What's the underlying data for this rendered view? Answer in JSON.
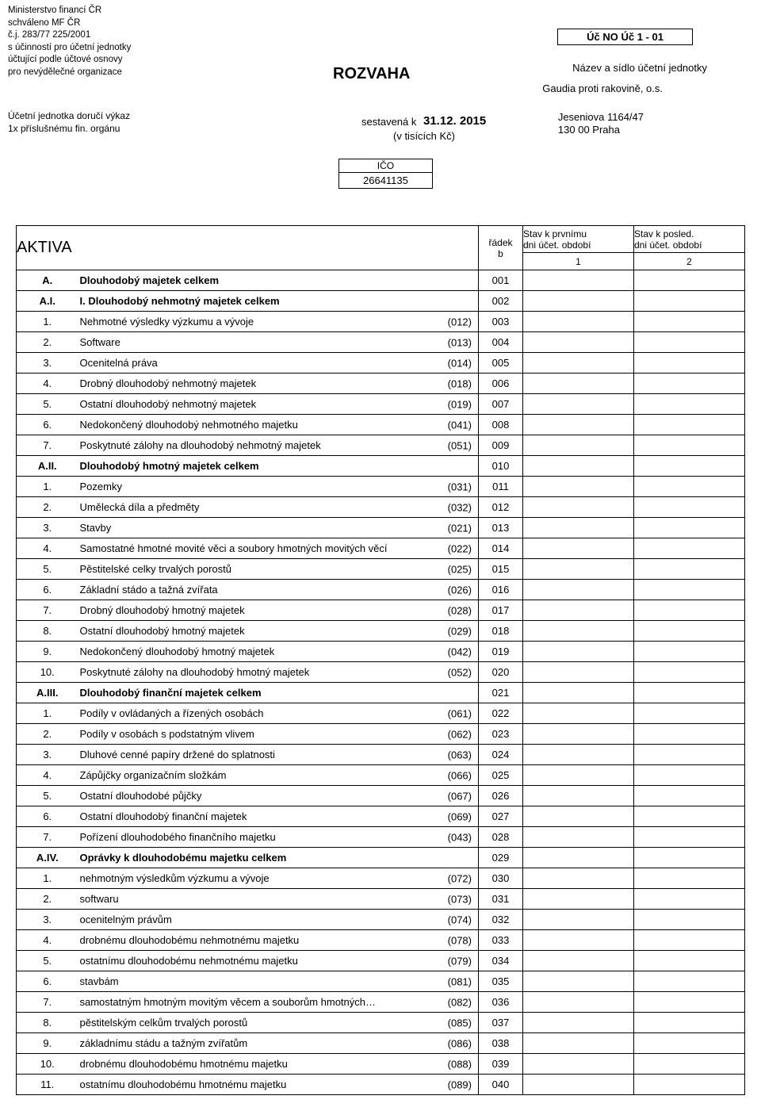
{
  "header": {
    "ministry_lines": [
      "Ministerstvo financí ČR",
      "schváleno MF ČR",
      "č.j. 283/77 225/2001",
      "s účinností pro účetní jednotky",
      "účtující podle účtové osnovy",
      "pro nevýdělečné organizace"
    ],
    "form_code": "Úč NO Úč 1 - 01",
    "entity_label": "Název a sídlo účetní jednotky",
    "entity_name": "Gaudia proti rakovině, o.s.",
    "address_line1": "Jeseniova 1164/47",
    "address_line2": "130 00  Praha",
    "title": "ROZVAHA",
    "compiled_label": "sestavená k",
    "compiled_date": "31.12. 2015",
    "currency_note": "(v tisících Kč)",
    "deliver_lines": [
      "Účetní jednotka doručí výkaz",
      "1x příslušnému fin. orgánu"
    ],
    "ico_label": "IČO",
    "ico_value": "26641135"
  },
  "table": {
    "heading": "AKTIVA",
    "col_radek": "řádek",
    "col_radek_b": "b",
    "col_stav1_l1": "Stav k prvnímu",
    "col_stav1_l2": "dni účet. období",
    "col_stav2_l1": "Stav k posled.",
    "col_stav2_l2": "dni účet. období",
    "col_num1": "1",
    "col_num2": "2",
    "rows": [
      {
        "idx": "A.",
        "bold": true,
        "desc": "Dlouhodobý majetek celkem",
        "acct": "",
        "rad": "001",
        "v1": "",
        "v2": ""
      },
      {
        "idx": "A.I.",
        "bold": true,
        "desc": "I. Dlouhodobý nehmotný majetek celkem",
        "acct": "",
        "rad": "002",
        "v1": "",
        "v2": ""
      },
      {
        "idx": "1.",
        "bold": false,
        "desc": "Nehmotné výsledky výzkumu a vývoje",
        "acct": "(012)",
        "rad": "003",
        "v1": "",
        "v2": ""
      },
      {
        "idx": "2.",
        "bold": false,
        "desc": "Software",
        "acct": "(013)",
        "rad": "004",
        "v1": "",
        "v2": ""
      },
      {
        "idx": "3.",
        "bold": false,
        "desc": "Ocenitelná práva",
        "acct": "(014)",
        "rad": "005",
        "v1": "",
        "v2": ""
      },
      {
        "idx": "4.",
        "bold": false,
        "desc": "Drobný dlouhodobý nehmotný majetek",
        "acct": "(018)",
        "rad": "006",
        "v1": "",
        "v2": ""
      },
      {
        "idx": "5.",
        "bold": false,
        "desc": "Ostatní dlouhodobý nehmotný majetek",
        "acct": "(019)",
        "rad": "007",
        "v1": "",
        "v2": ""
      },
      {
        "idx": "6.",
        "bold": false,
        "desc": "Nedokončený dlouhodobý nehmotného majetku",
        "acct": "(041)",
        "rad": "008",
        "v1": "",
        "v2": ""
      },
      {
        "idx": "7.",
        "bold": false,
        "desc": "Poskytnuté zálohy  na dlouhodobý nehmotný majetek",
        "acct": "(051)",
        "rad": "009",
        "v1": "",
        "v2": ""
      },
      {
        "idx": "A.II.",
        "bold": true,
        "desc": "Dlouhodobý hmotný majetek celkem",
        "acct": "",
        "rad": "010",
        "v1": "",
        "v2": ""
      },
      {
        "idx": "1.",
        "bold": false,
        "desc": "Pozemky",
        "acct": "(031)",
        "rad": "011",
        "v1": "",
        "v2": ""
      },
      {
        "idx": "2.",
        "bold": false,
        "desc": "Umělecká díla a předměty",
        "acct": "(032)",
        "rad": "012",
        "v1": "",
        "v2": ""
      },
      {
        "idx": "3.",
        "bold": false,
        "desc": "Stavby",
        "acct": "(021)",
        "rad": "013",
        "v1": "",
        "v2": ""
      },
      {
        "idx": "4.",
        "bold": false,
        "desc": "Samostatné hmotné movité věci a soubory hmotných movitých věcí",
        "acct": "(022)",
        "rad": "014",
        "v1": "",
        "v2": ""
      },
      {
        "idx": "5.",
        "bold": false,
        "desc": "Pěstitelské celky trvalých porostů",
        "acct": "(025)",
        "rad": "015",
        "v1": "",
        "v2": ""
      },
      {
        "idx": "6.",
        "bold": false,
        "desc": "Základní stádo a tažná zvířata",
        "acct": "(026)",
        "rad": "016",
        "v1": "",
        "v2": ""
      },
      {
        "idx": "7.",
        "bold": false,
        "desc": "Drobný dlouhodobý hmotný majetek",
        "acct": "(028)",
        "rad": "017",
        "v1": "",
        "v2": ""
      },
      {
        "idx": "8.",
        "bold": false,
        "desc": "Ostatní dlouhodobý hmotný majetek",
        "acct": "(029)",
        "rad": "018",
        "v1": "",
        "v2": ""
      },
      {
        "idx": "9.",
        "bold": false,
        "desc": "Nedokončený dlouhodobý hmotný majetek",
        "acct": "(042)",
        "rad": "019",
        "v1": "",
        "v2": ""
      },
      {
        "idx": "10.",
        "bold": false,
        "desc": "Poskytnuté zálohy na dlouhodobý hmotný majetek",
        "acct": "(052)",
        "rad": "020",
        "v1": "",
        "v2": ""
      },
      {
        "idx": "A.III.",
        "bold": true,
        "desc": "Dlouhodobý finanční majetek celkem",
        "acct": "",
        "rad": "021",
        "v1": "",
        "v2": ""
      },
      {
        "idx": "1.",
        "bold": false,
        "desc": "Podíly v ovládaných a řízených osobách",
        "acct": "(061)",
        "rad": "022",
        "v1": "",
        "v2": ""
      },
      {
        "idx": "2.",
        "bold": false,
        "desc": "Podíly v osobách  s podstatným vlivem",
        "acct": "(062)",
        "rad": "023",
        "v1": "",
        "v2": ""
      },
      {
        "idx": "3.",
        "bold": false,
        "desc": "Dluhové cenné papíry držené do splatnosti",
        "acct": "(063)",
        "rad": "024",
        "v1": "",
        "v2": ""
      },
      {
        "idx": "4.",
        "bold": false,
        "desc": "Zápůjčky organizačním složkám",
        "acct": "(066)",
        "rad": "025",
        "v1": "",
        "v2": ""
      },
      {
        "idx": "5.",
        "bold": false,
        "desc": "Ostatní dlouhodobé půjčky",
        "acct": "(067)",
        "rad": "026",
        "v1": "",
        "v2": ""
      },
      {
        "idx": "6.",
        "bold": false,
        "desc": "Ostatní dlouhodobý finanční majetek",
        "acct": "(069)",
        "rad": "027",
        "v1": "",
        "v2": ""
      },
      {
        "idx": "7.",
        "bold": false,
        "desc": "Pořízení dlouhodobého finančního majetku",
        "acct": "(043)",
        "rad": "028",
        "v1": "",
        "v2": ""
      },
      {
        "idx": "A.IV.",
        "bold": true,
        "desc": "Oprávky k dlouhodobému majetku celkem",
        "acct": "",
        "rad": "029",
        "v1": "",
        "v2": ""
      },
      {
        "idx": "1.",
        "bold": false,
        "desc": "nehmotným výsledkům výzkumu a vývoje",
        "acct": "(072)",
        "rad": "030",
        "v1": "",
        "v2": ""
      },
      {
        "idx": "2.",
        "bold": false,
        "desc": "softwaru",
        "acct": "(073)",
        "rad": "031",
        "v1": "",
        "v2": ""
      },
      {
        "idx": "3.",
        "bold": false,
        "desc": "ocenitelným právům",
        "acct": "(074)",
        "rad": "032",
        "v1": "",
        "v2": ""
      },
      {
        "idx": "4.",
        "bold": false,
        "desc": "drobnému dlouhodobému nehmotnému majetku",
        "acct": "(078)",
        "rad": "033",
        "v1": "",
        "v2": ""
      },
      {
        "idx": "5.",
        "bold": false,
        "desc": "ostatnímu dlouhodobému nehmotnému majetku",
        "acct": "(079)",
        "rad": "034",
        "v1": "",
        "v2": ""
      },
      {
        "idx": "6.",
        "bold": false,
        "desc": "stavbám",
        "acct": "(081)",
        "rad": "035",
        "v1": "",
        "v2": ""
      },
      {
        "idx": "7.",
        "bold": false,
        "desc": "samostatným hmotným movitým věcem a souborům hmotných…",
        "acct": "(082)",
        "rad": "036",
        "v1": "",
        "v2": ""
      },
      {
        "idx": "8.",
        "bold": false,
        "desc": "pěstitelským celkům trvalých porostů",
        "acct": "(085)",
        "rad": "037",
        "v1": "",
        "v2": ""
      },
      {
        "idx": "9.",
        "bold": false,
        "desc": "základnímu stádu a tažným zvířatům",
        "acct": "(086)",
        "rad": "038",
        "v1": "",
        "v2": ""
      },
      {
        "idx": "10.",
        "bold": false,
        "desc": "drobnému dlouhodobému hmotnému majetku",
        "acct": "(088)",
        "rad": "039",
        "v1": "",
        "v2": ""
      },
      {
        "idx": "11.",
        "bold": false,
        "desc": "ostatnímu dlouhodobému hmotnému majetku",
        "acct": "(089)",
        "rad": "040",
        "v1": "",
        "v2": ""
      }
    ]
  }
}
